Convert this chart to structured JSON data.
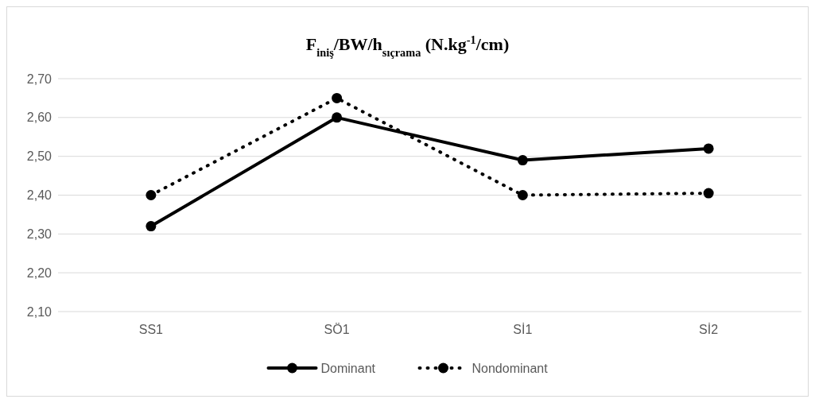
{
  "chart_data": {
    "type": "line",
    "title": "F$_{iniş}$/BW/h$_{sıçrama}$ (N.kg$^{-1}$/cm)",
    "categories": [
      "SS1",
      "SÖ1",
      "Sİ1",
      "Sİ2"
    ],
    "series": [
      {
        "name": "Dominant",
        "color": "#000000",
        "values": [
          2.32,
          2.6,
          2.49,
          2.52
        ],
        "line_style": "solid"
      },
      {
        "name": "Nondominant",
        "color": "#000000",
        "values": [
          2.4,
          2.65,
          2.4,
          2.405
        ],
        "line_style": "dotted"
      }
    ],
    "ylim": [
      2.1,
      2.7
    ],
    "yticks": [
      {
        "value": 2.1,
        "label": "2,10"
      },
      {
        "value": 2.2,
        "label": "2,20"
      },
      {
        "value": 2.3,
        "label": "2,30"
      },
      {
        "value": 2.4,
        "label": "2,40"
      },
      {
        "value": 2.5,
        "label": "2,50"
      },
      {
        "value": 2.6,
        "label": "2,60"
      },
      {
        "value": 2.7,
        "label": "2,70"
      }
    ],
    "grid": "y",
    "legend": "bottom",
    "marker": "circle"
  }
}
